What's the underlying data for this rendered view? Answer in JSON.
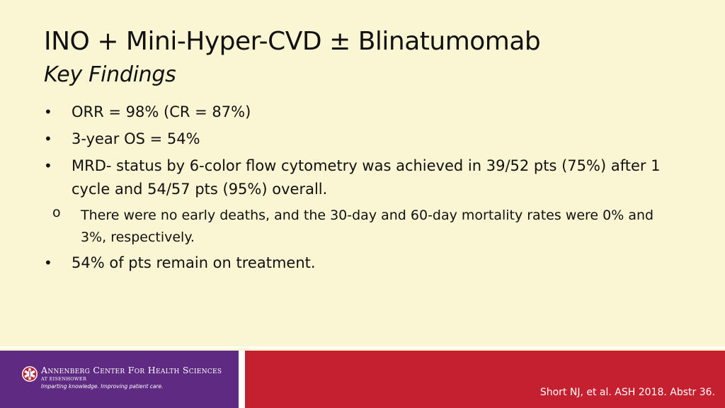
{
  "slide": {
    "title": "INO + Mini-Hyper-CVD ± Blinatumomab",
    "subtitle": "Key Findings",
    "bullet_symbol": "•",
    "sub_bullet_symbol": "o",
    "bullets": [
      {
        "text": "ORR = 98% (CR = 87%)"
      },
      {
        "text": "3-year OS = 54%"
      },
      {
        "text": "MRD- status by 6-color flow cytometry was achieved in 39/52 pts (75%) after 1 cycle and 54/57 pts (95%) overall.",
        "sub_bullets": [
          "There were no early deaths, and the 30-day and 60-day mortality rates were 0% and 3%, respectively."
        ]
      },
      {
        "text": "54% of pts remain on treatment."
      }
    ]
  },
  "footer": {
    "org_name": "Annenberg Center For Health Sciences",
    "org_subname": "AT EISENHOWER",
    "tagline": "Imparting knowledge. Improving patient care.",
    "citation": "Short NJ, et al. ASH 2018. Abstr 36.",
    "logo_icon": "star-of-life-icon"
  },
  "colors": {
    "background": "#faf5d2",
    "footer_purple": "#5f2a82",
    "footer_red": "#c4202f"
  }
}
